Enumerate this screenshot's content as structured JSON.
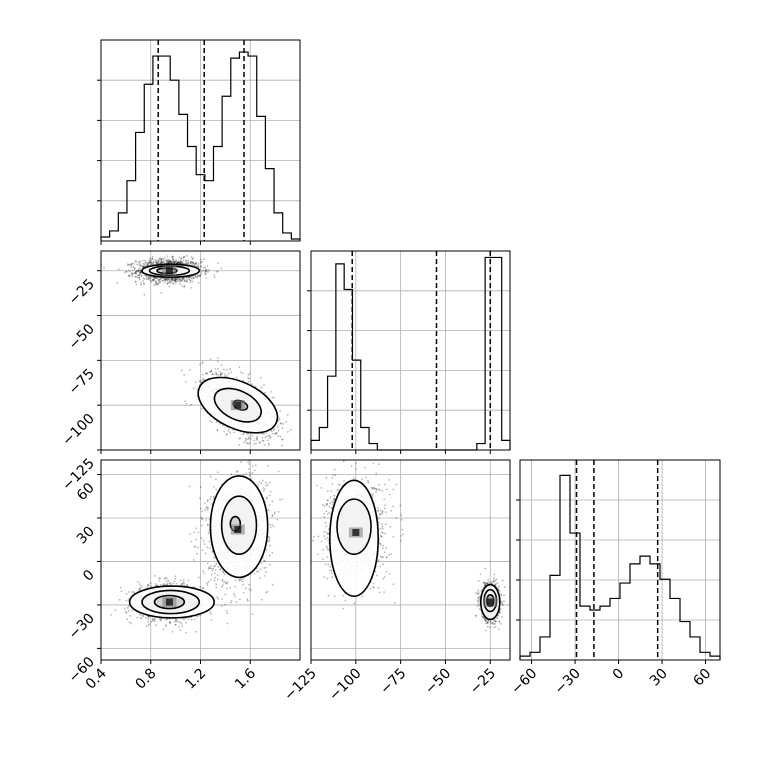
{
  "chart_data": {
    "type": "corner",
    "title": "",
    "grid": true,
    "parameters": [
      {
        "range": [
          0.4,
          2.0
        ],
        "ticks": [
          0.4,
          0.8,
          1.2,
          1.6
        ],
        "tick_labels": [
          "0.4",
          "0.8",
          "1.2",
          "1.6"
        ],
        "quantiles": [
          0.86,
          1.23,
          1.55
        ],
        "histogram": [
          2,
          5,
          14,
          30,
          54,
          78,
          92,
          92,
          80,
          63,
          47,
          33,
          30,
          47,
          72,
          91,
          94,
          92,
          62,
          36,
          14,
          4,
          1
        ],
        "hist_max": 100
      },
      {
        "range": [
          -125,
          -14
        ],
        "ticks": [
          -125,
          -100,
          -75,
          -50,
          -25
        ],
        "tick_labels": [
          "−125",
          "−100",
          "−75",
          "−50",
          "−25"
        ],
        "quantiles": [
          -102,
          -55,
          -25
        ],
        "histogram": [
          3,
          7,
          23,
          58,
          50,
          28,
          7,
          2,
          0,
          0,
          0,
          0,
          0,
          0,
          0,
          0,
          0,
          0,
          0,
          0,
          2,
          60,
          60,
          3
        ],
        "hist_max": 62
      },
      {
        "range": [
          -68,
          70
        ],
        "ticks": [
          -60,
          -30,
          0,
          30,
          60
        ],
        "tick_labels": [
          "−60",
          "−30",
          "0",
          "30",
          "60"
        ],
        "quantiles": [
          -29,
          -17,
          27
        ],
        "histogram": [
          1,
          2,
          6,
          22,
          48,
          33,
          14,
          13,
          14,
          16,
          20,
          25,
          27,
          25,
          21,
          16,
          10,
          6,
          2,
          1
        ],
        "hist_max": 52
      }
    ],
    "pairs": [
      {
        "x_param": 0,
        "y_param": 1,
        "modes": [
          {
            "cx": 0.95,
            "cy": -25,
            "sx": 0.13,
            "sy": 3.2,
            "rho": 0.0,
            "n": 1400
          },
          {
            "cx": 1.5,
            "cy": -100,
            "sx": 0.14,
            "sy": 9,
            "rho": -0.55,
            "n": 1400
          }
        ],
        "contours": [
          {
            "cx": 0.96,
            "cy": -25,
            "rx": 0.23,
            "ry": 3.6,
            "rot": 0
          },
          {
            "cx": 0.95,
            "cy": -25,
            "rx": 0.16,
            "ry": 2.6,
            "rot": 0
          },
          {
            "cx": 0.93,
            "cy": -25,
            "rx": 0.08,
            "ry": 1.5,
            "rot": 0
          },
          {
            "cx": 1.5,
            "cy": -100,
            "rx": 0.34,
            "ry": 13,
            "rot": 25
          },
          {
            "cx": 1.5,
            "cy": -100,
            "rx": 0.2,
            "ry": 8,
            "rot": 25
          },
          {
            "cx": 1.52,
            "cy": -100,
            "rx": 0.06,
            "ry": 2.4,
            "rot": 20
          }
        ]
      },
      {
        "x_param": 0,
        "y_param": 2,
        "modes": [
          {
            "cx": 0.95,
            "cy": -28,
            "sx": 0.13,
            "sy": 6,
            "rho": 0.0,
            "n": 1400
          },
          {
            "cx": 1.5,
            "cy": 22,
            "sx": 0.12,
            "sy": 18,
            "rho": 0.15,
            "n": 1400
          }
        ],
        "contours": [
          {
            "cx": 0.97,
            "cy": -28,
            "rx": 0.34,
            "ry": 11,
            "rot": 0
          },
          {
            "cx": 0.96,
            "cy": -28,
            "rx": 0.23,
            "ry": 8,
            "rot": 0
          },
          {
            "cx": 0.95,
            "cy": -28,
            "rx": 0.12,
            "ry": 4.5,
            "rot": 0
          },
          {
            "cx": 1.51,
            "cy": 24,
            "rx": 0.23,
            "ry": 35,
            "rot": 0
          },
          {
            "cx": 1.51,
            "cy": 25,
            "rx": 0.14,
            "ry": 20,
            "rot": 0
          },
          {
            "cx": 1.48,
            "cy": 26,
            "rx": 0.04,
            "ry": 5,
            "rot": 0
          }
        ]
      },
      {
        "x_param": 1,
        "y_param": 2,
        "modes": [
          {
            "cx": -100,
            "cy": 20,
            "sx": 8,
            "sy": 17,
            "rho": 0.0,
            "n": 1400
          },
          {
            "cx": -25,
            "cy": -28,
            "sx": 2.5,
            "sy": 6,
            "rho": 0.0,
            "n": 1400
          }
        ],
        "contours": [
          {
            "cx": -101,
            "cy": 16,
            "rx": 13.5,
            "ry": 40,
            "rot": 0
          },
          {
            "cx": -101,
            "cy": 24,
            "rx": 9.5,
            "ry": 19,
            "rot": 0
          },
          {
            "cx": -25,
            "cy": -28,
            "rx": 5.3,
            "ry": 12,
            "rot": 0
          },
          {
            "cx": -25,
            "cy": -27,
            "rx": 3.5,
            "ry": 7.5,
            "rot": 0
          },
          {
            "cx": -25,
            "cy": -27,
            "rx": 2,
            "ry": 4,
            "rot": 0
          }
        ]
      }
    ]
  }
}
